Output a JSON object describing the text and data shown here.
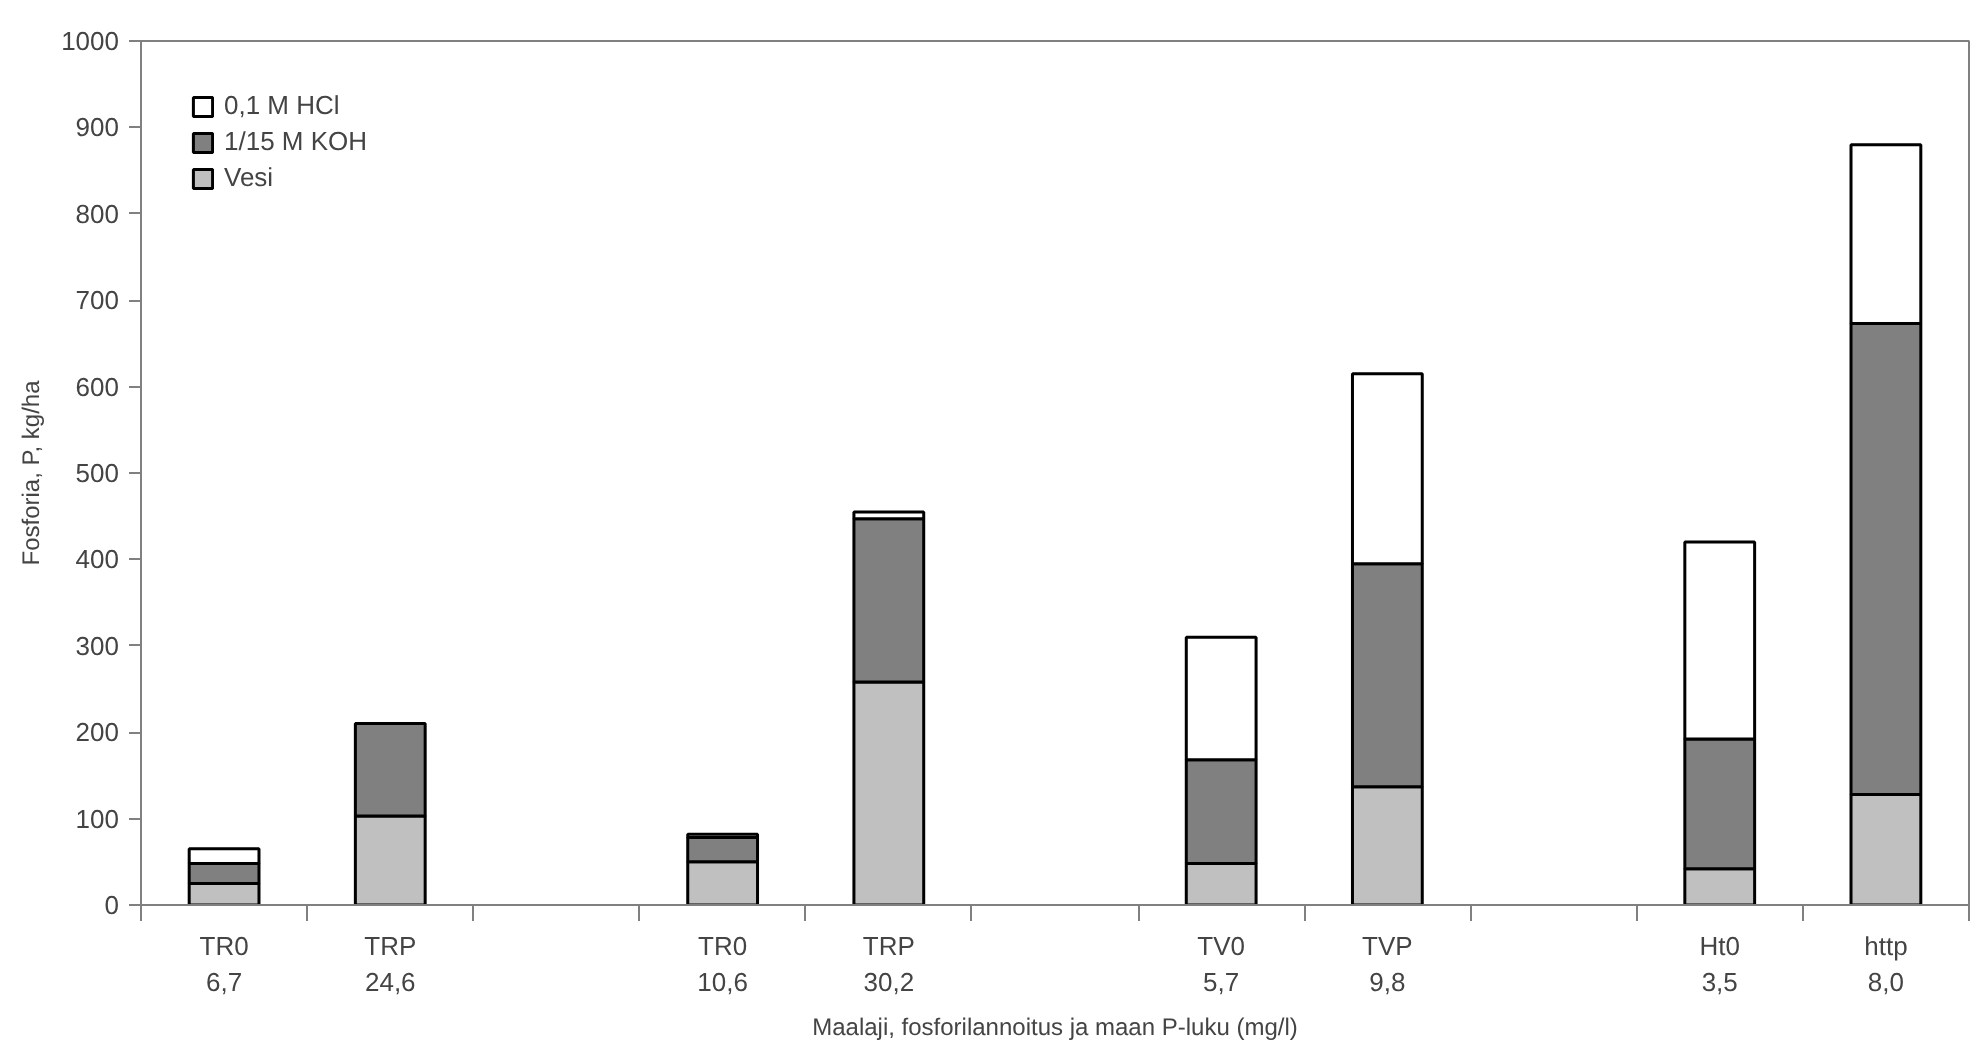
{
  "chart_data": {
    "type": "bar",
    "stacked": true,
    "xlabel": "Maalaji, fosforilannoitus ja maan P-luku (mg/l)",
    "ylabel": "Fosforia, P, kg/ha",
    "categories": [
      "TR0\n6,7",
      "TRP\n24,6",
      null,
      "TR0\n10,6",
      "TRP\n30,2",
      null,
      "TV0\n5,7",
      "TVP\n9,8",
      null,
      "Ht0\n3,5",
      "http\n8,0"
    ],
    "series": [
      {
        "name": "Vesi",
        "color": "#c0c0c0",
        "values": [
          25,
          103,
          null,
          50,
          258,
          null,
          48,
          137,
          null,
          42,
          128
        ]
      },
      {
        "name": "1/15 M KOH",
        "color": "#808080",
        "values": [
          23,
          107,
          null,
          28,
          189,
          null,
          120,
          258,
          null,
          150,
          545
        ]
      },
      {
        "name": "0,1 M HCl",
        "color": "#ffffff",
        "values": [
          17,
          null,
          null,
          4,
          8,
          null,
          142,
          220,
          null,
          228,
          207
        ]
      }
    ],
    "ylim": [
      0,
      1000
    ],
    "yticks": [
      0,
      100,
      200,
      300,
      400,
      500,
      600,
      700,
      800,
      900,
      1000
    ],
    "grid": false,
    "legend": "top left"
  }
}
